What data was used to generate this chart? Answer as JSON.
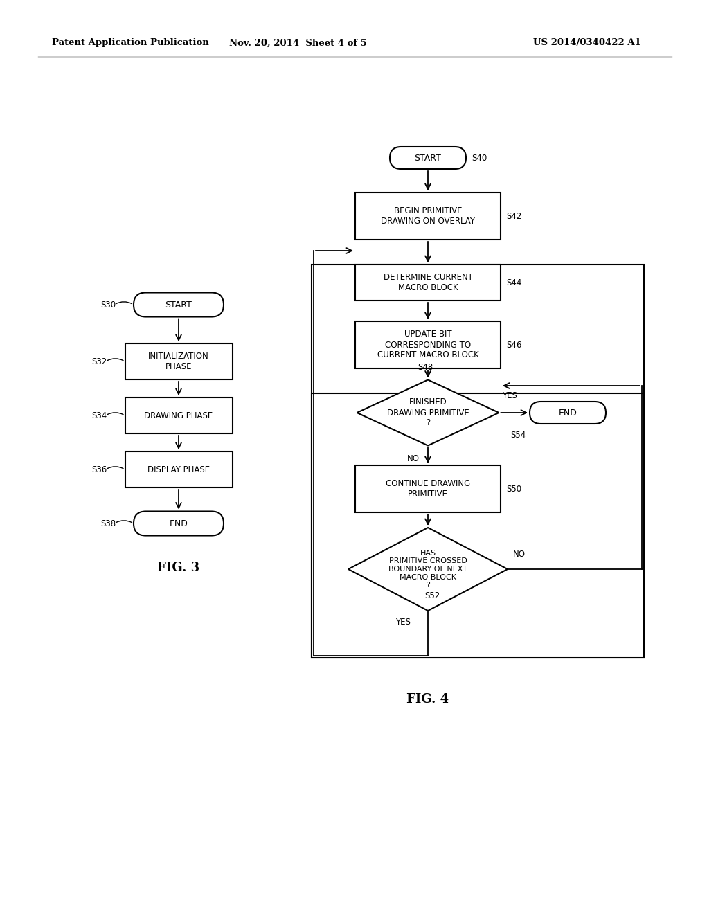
{
  "bg_color": "#ffffff",
  "header_left": "Patent Application Publication",
  "header_mid": "Nov. 20, 2014  Sheet 4 of 5",
  "header_right": "US 2014/0340422 A1",
  "fig3_label": "FIG. 3",
  "fig4_label": "FIG. 4"
}
